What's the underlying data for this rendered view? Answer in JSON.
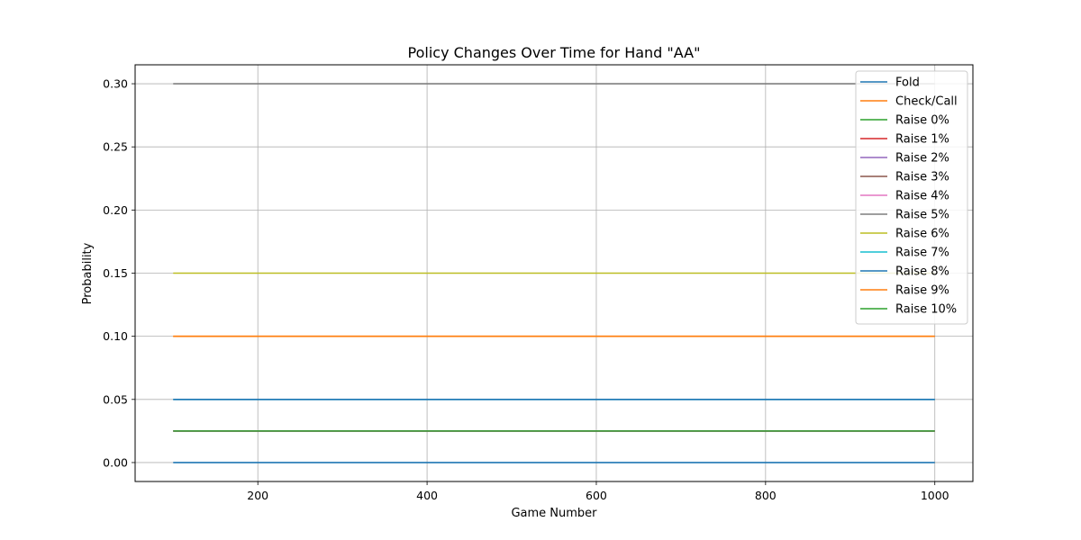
{
  "chart_data": {
    "type": "line",
    "title": "Policy Changes Over Time for Hand \"AA\"",
    "xlabel": "Game Number",
    "ylabel": "Probability",
    "xlim": [
      55,
      1045
    ],
    "ylim": [
      -0.015,
      0.315
    ],
    "xticks": [
      200,
      400,
      600,
      800,
      1000
    ],
    "yticks": [
      0.0,
      0.05,
      0.1,
      0.15,
      0.2,
      0.25,
      0.3
    ],
    "ytick_labels": [
      "0.00",
      "0.05",
      "0.10",
      "0.15",
      "0.20",
      "0.25",
      "0.30"
    ],
    "grid": true,
    "legend_position": "top-right",
    "x": [
      100,
      1000
    ],
    "series": [
      {
        "name": "Fold",
        "color": "#1f77b4",
        "values": [
          0.0,
          0.0
        ]
      },
      {
        "name": "Check/Call",
        "color": "#ff7f0e",
        "values": [
          0.1,
          0.1
        ]
      },
      {
        "name": "Raise 0%",
        "color": "#2ca02c",
        "values": [
          0.025,
          0.025
        ]
      },
      {
        "name": "Raise 1%",
        "color": "#d62728",
        "values": [
          0.025,
          0.025
        ]
      },
      {
        "name": "Raise 2%",
        "color": "#9467bd",
        "values": [
          0.025,
          0.025
        ]
      },
      {
        "name": "Raise 3%",
        "color": "#8c564b",
        "values": [
          0.025,
          0.025
        ]
      },
      {
        "name": "Raise 4%",
        "color": "#e377c2",
        "values": [
          0.025,
          0.025
        ]
      },
      {
        "name": "Raise 5%",
        "color": "#7f7f7f",
        "values": [
          0.3,
          0.3
        ]
      },
      {
        "name": "Raise 6%",
        "color": "#bcbd22",
        "values": [
          0.15,
          0.15
        ]
      },
      {
        "name": "Raise 7%",
        "color": "#17becf",
        "values": [
          0.05,
          0.05
        ]
      },
      {
        "name": "Raise 8%",
        "color": "#1f77b4",
        "values": [
          0.05,
          0.05
        ]
      },
      {
        "name": "Raise 9%",
        "color": "#ff7f0e",
        "values": [
          0.1,
          0.1
        ]
      },
      {
        "name": "Raise 10%",
        "color": "#2ca02c",
        "values": [
          0.025,
          0.025
        ]
      }
    ]
  }
}
